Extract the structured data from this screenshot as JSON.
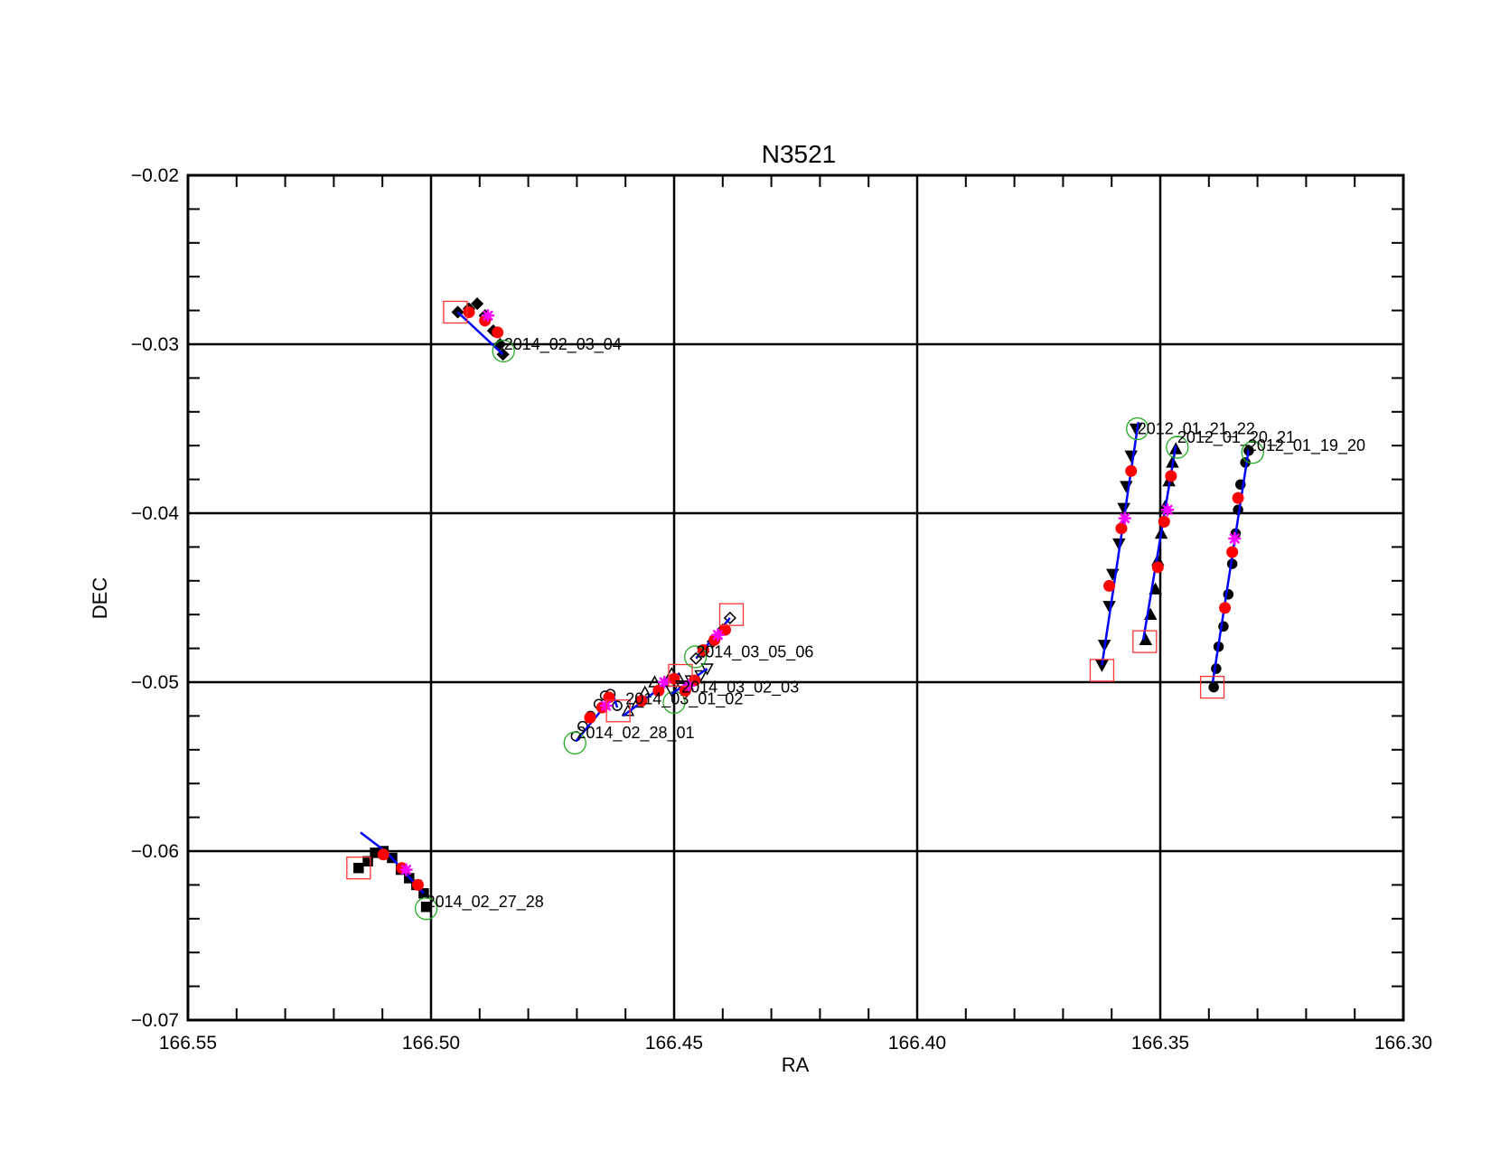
{
  "chart_data": {
    "type": "scatter",
    "title": "N3521",
    "xlabel": "RA",
    "ylabel": "DEC",
    "xlim": [
      166.55,
      166.3
    ],
    "ylim": [
      -0.07,
      -0.02
    ],
    "x_reversed": true,
    "grid": true,
    "x_ticks": [
      "166.55",
      "166.50",
      "166.45",
      "166.40",
      "166.35",
      "166.30"
    ],
    "y_ticks": [
      "−0.07",
      "−0.06",
      "−0.05",
      "−0.04",
      "−0.03",
      "−0.02"
    ],
    "grid_x": [
      166.5,
      166.45,
      166.4,
      166.35
    ],
    "grid_y": [
      -0.06,
      -0.05,
      -0.04,
      -0.03
    ],
    "colors": {
      "track_line": "#0000ff",
      "points": "#000000",
      "red_dots": "#ff0000",
      "magenta_star": "#ff00ff",
      "start_box": "#ff3333",
      "end_circle": "#22aa22",
      "grid": "#000000"
    },
    "tracks": [
      {
        "label": "2014_02_03_04",
        "marker": "diamond",
        "points": [
          [
            166.4945,
            -0.0281
          ],
          [
            166.4922,
            -0.0279
          ],
          [
            166.4905,
            -0.0276
          ],
          [
            166.4889,
            -0.0283
          ],
          [
            166.4872,
            -0.0292
          ],
          [
            166.4858,
            -0.03
          ],
          [
            166.4852,
            -0.0306
          ]
        ],
        "line": [
          [
            166.4945,
            -0.0281
          ],
          [
            166.4852,
            -0.0306
          ]
        ],
        "red_dots": [
          [
            166.4922,
            -0.0281
          ],
          [
            166.4889,
            -0.0286
          ],
          [
            166.4863,
            -0.0293
          ]
        ],
        "magenta": [
          166.4883,
          -0.0283
        ],
        "start_box": [
          166.495,
          -0.0281
        ],
        "end_circle": [
          166.4851,
          -0.0304
        ],
        "label_pos": [
          166.485,
          -0.03
        ]
      },
      {
        "label": "2014_02_27_28",
        "marker": "square",
        "points": [
          [
            166.5149,
            -0.061
          ],
          [
            166.513,
            -0.0606
          ],
          [
            166.5115,
            -0.0601
          ],
          [
            166.5098,
            -0.06
          ],
          [
            166.508,
            -0.0604
          ],
          [
            166.5062,
            -0.0611
          ],
          [
            166.5045,
            -0.0616
          ],
          [
            166.503,
            -0.062
          ],
          [
            166.5015,
            -0.0625
          ],
          [
            166.501,
            -0.0633
          ]
        ],
        "line": [
          [
            166.5145,
            -0.0589
          ],
          [
            166.509,
            -0.0601
          ],
          [
            166.5015,
            -0.0625
          ]
        ],
        "red_dots": [
          [
            166.5098,
            -0.0602
          ],
          [
            166.506,
            -0.061
          ],
          [
            166.5027,
            -0.062
          ]
        ],
        "magenta": [
          166.5051,
          -0.0611
        ],
        "start_box": [
          166.5149,
          -0.061
        ],
        "end_circle": [
          166.501,
          -0.0634
        ],
        "label_pos": [
          166.501,
          -0.063
        ]
      },
      {
        "label": "2014_02_28_01",
        "marker": "circle-open",
        "points": [
          [
            166.4702,
            -0.0532
          ],
          [
            166.4688,
            -0.0526
          ],
          [
            166.4672,
            -0.052
          ],
          [
            166.4655,
            -0.0513
          ],
          [
            166.4642,
            -0.0508
          ],
          [
            166.4631,
            -0.0507
          ],
          [
            166.4617,
            -0.0514
          ]
        ],
        "line": [
          [
            166.4702,
            -0.0535
          ],
          [
            166.4625,
            -0.0508
          ],
          [
            166.4617,
            -0.0515
          ]
        ],
        "red_dots": [
          [
            166.4673,
            -0.0521
          ],
          [
            166.4634,
            -0.0509
          ],
          [
            166.4648,
            -0.0515
          ]
        ],
        "magenta": [
          166.464,
          -0.0514
        ],
        "start_box": null,
        "end_circle": [
          166.4704,
          -0.0536
        ],
        "label_pos": [
          166.47,
          -0.053
        ]
      },
      {
        "label": "2014_03_01_02",
        "marker": "triangle-open",
        "points": [
          [
            166.4595,
            -0.0517
          ],
          [
            166.4575,
            -0.0512
          ],
          [
            166.456,
            -0.0506
          ],
          [
            166.454,
            -0.05
          ],
          [
            166.4505,
            -0.0495
          ],
          [
            166.449,
            -0.0498
          ]
        ],
        "line": [
          [
            166.4605,
            -0.052
          ],
          [
            166.449,
            -0.0495
          ]
        ],
        "red_dots": [
          [
            166.4567,
            -0.0511
          ],
          [
            166.4532,
            -0.0505
          ],
          [
            166.45,
            -0.0498
          ]
        ],
        "magenta": [
          166.452,
          -0.05
        ],
        "start_box": [
          166.4615,
          -0.0517
        ],
        "end_circle": [
          166.45,
          -0.0512
        ],
        "label_pos": [
          166.46,
          -0.051
        ]
      },
      {
        "label": "2014_03_02_03",
        "marker": "triangle-down-open",
        "points": [
          [
            166.4505,
            -0.0505
          ],
          [
            166.4485,
            -0.0502
          ],
          [
            166.4465,
            -0.0499
          ],
          [
            166.4445,
            -0.0496
          ],
          [
            166.4432,
            -0.0492
          ]
        ],
        "line": [
          [
            166.4505,
            -0.0507
          ],
          [
            166.4432,
            -0.0492
          ]
        ],
        "red_dots": [
          [
            166.4477,
            -0.0505
          ],
          [
            166.4458,
            -0.0499
          ]
        ],
        "magenta": [
          166.447,
          -0.0502
        ],
        "start_box": [
          166.4487,
          -0.0496
        ],
        "end_circle": null,
        "label_pos": [
          166.4485,
          -0.0503
        ]
      },
      {
        "label": "2014_03_05_06",
        "marker": "diamond-open",
        "points": [
          [
            166.4455,
            -0.0486
          ],
          [
            166.444,
            -0.0482
          ],
          [
            166.442,
            -0.0476
          ],
          [
            166.44,
            -0.0469
          ],
          [
            166.4385,
            -0.0462
          ]
        ],
        "line": [
          [
            166.4455,
            -0.0486
          ],
          [
            166.4385,
            -0.0462
          ]
        ],
        "red_dots": [
          [
            166.444,
            -0.0481
          ],
          [
            166.4417,
            -0.0475
          ],
          [
            166.4395,
            -0.0469
          ]
        ],
        "magenta": [
          166.441,
          -0.0472
        ],
        "start_box": [
          166.4382,
          -0.046
        ],
        "end_circle": [
          166.4456,
          -0.0485
        ],
        "label_pos": [
          166.4455,
          -0.0482
        ]
      },
      {
        "label": "2012_01_21_22",
        "marker": "triangle-down",
        "points": [
          [
            166.362,
            -0.049
          ],
          [
            166.3615,
            -0.0478
          ],
          [
            166.3605,
            -0.0455
          ],
          [
            166.3598,
            -0.0436
          ],
          [
            166.3585,
            -0.0418
          ],
          [
            166.3575,
            -0.0397
          ],
          [
            166.357,
            -0.0384
          ],
          [
            166.356,
            -0.0366
          ],
          [
            166.355,
            -0.035
          ]
        ],
        "line": [
          [
            166.362,
            -0.049
          ],
          [
            166.3545,
            -0.0346
          ]
        ],
        "red_dots": [
          [
            166.3605,
            -0.0443
          ],
          [
            166.358,
            -0.0409
          ],
          [
            166.356,
            -0.0375
          ]
        ],
        "magenta": [
          166.3573,
          -0.0403
        ],
        "start_box": [
          166.362,
          -0.0493
        ],
        "end_circle": [
          166.3547,
          -0.035
        ],
        "label_pos": [
          166.3547,
          -0.035
        ]
      },
      {
        "label": "2012_01_20_21",
        "marker": "triangle",
        "points": [
          [
            166.353,
            -0.0475
          ],
          [
            166.352,
            -0.046
          ],
          [
            166.351,
            -0.0445
          ],
          [
            166.3505,
            -0.0428
          ],
          [
            166.3498,
            -0.0412
          ],
          [
            166.349,
            -0.0396
          ],
          [
            166.3482,
            -0.0381
          ],
          [
            166.3475,
            -0.037
          ],
          [
            166.3468,
            -0.0362
          ]
        ],
        "line": [
          [
            166.3535,
            -0.0475
          ],
          [
            166.3468,
            -0.036
          ]
        ],
        "red_dots": [
          [
            166.3505,
            -0.0432
          ],
          [
            166.3492,
            -0.0405
          ],
          [
            166.3478,
            -0.0378
          ]
        ],
        "magenta": [
          166.3485,
          -0.0398
        ],
        "start_box": [
          166.3532,
          -0.0476
        ],
        "end_circle": [
          166.3465,
          -0.0361
        ],
        "label_pos": [
          166.3465,
          -0.0355
        ]
      },
      {
        "label": "2012_01_19_20",
        "marker": "circle",
        "points": [
          [
            166.339,
            -0.0503
          ],
          [
            166.3385,
            -0.0492
          ],
          [
            166.338,
            -0.0479
          ],
          [
            166.337,
            -0.0467
          ],
          [
            166.336,
            -0.0448
          ],
          [
            166.3352,
            -0.043
          ],
          [
            166.3345,
            -0.0412
          ],
          [
            166.334,
            -0.0398
          ],
          [
            166.3335,
            -0.0383
          ],
          [
            166.3325,
            -0.037
          ],
          [
            166.3318,
            -0.0363
          ]
        ],
        "line": [
          [
            166.3392,
            -0.05
          ],
          [
            166.3318,
            -0.0362
          ]
        ],
        "red_dots": [
          [
            166.3367,
            -0.0456
          ],
          [
            166.3352,
            -0.0423
          ],
          [
            166.334,
            -0.0391
          ]
        ],
        "magenta": [
          166.3347,
          -0.0415
        ],
        "start_box": [
          166.3393,
          -0.0503
        ],
        "end_circle": [
          166.331,
          -0.0364
        ],
        "label_pos": [
          166.332,
          -0.036
        ]
      }
    ]
  }
}
